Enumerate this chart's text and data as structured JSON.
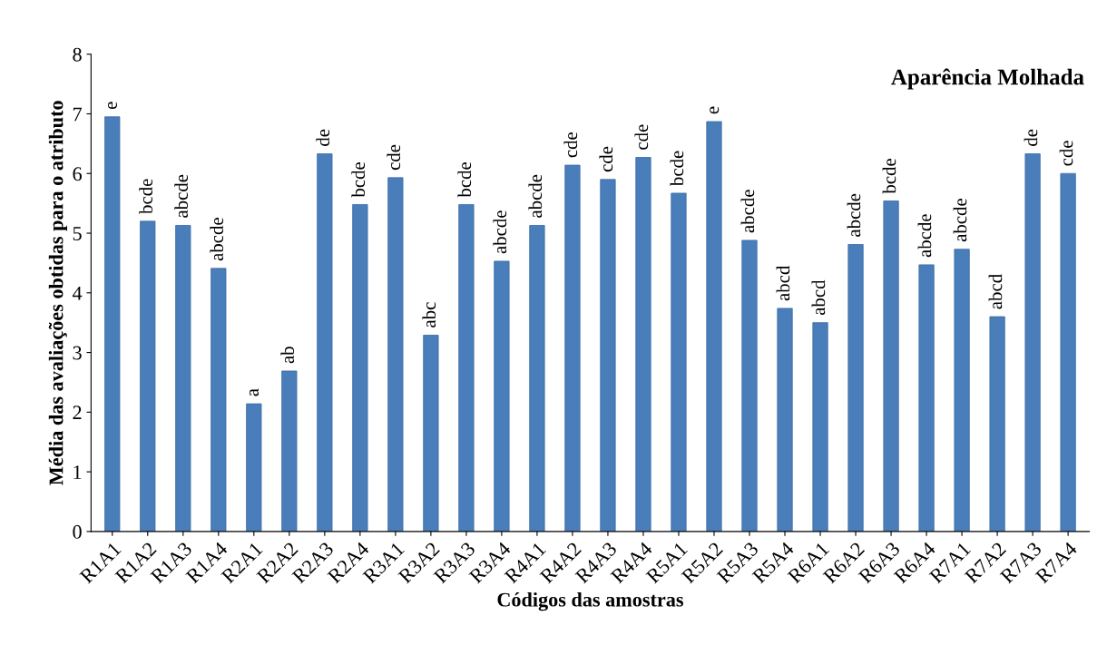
{
  "chart_data": {
    "type": "bar",
    "title": "Aparência Molhada",
    "xlabel": "Códigos das amostras",
    "ylabel": "Média das avaliações obtidas para o atributo",
    "categories": [
      "R1A1",
      "R1A2",
      "R1A3",
      "R1A4",
      "R2A1",
      "R2A2",
      "R2A3",
      "R2A4",
      "R3A1",
      "R3A2",
      "R3A3",
      "R3A4",
      "R4A1",
      "R4A2",
      "R4A3",
      "R4A4",
      "R5A1",
      "R5A2",
      "R5A3",
      "R5A4",
      "R6A1",
      "R6A2",
      "R6A3",
      "R6A4",
      "R7A1",
      "R7A2",
      "R7A3",
      "R7A4"
    ],
    "values": [
      6.95,
      5.2,
      5.13,
      4.41,
      2.14,
      2.69,
      6.33,
      5.48,
      5.93,
      3.29,
      5.48,
      4.53,
      5.13,
      6.14,
      5.9,
      6.27,
      5.67,
      6.87,
      4.88,
      3.74,
      3.5,
      4.81,
      5.54,
      4.47,
      4.73,
      3.6,
      6.33,
      6.0
    ],
    "value_labels": [
      "e",
      "bcde",
      "abcde",
      "abcde",
      "a",
      "ab",
      "de",
      "bcde",
      "cde",
      "abc",
      "bcde",
      "abcde",
      "abcde",
      "cde",
      "cde",
      "cde",
      "bcde",
      "e",
      "abcde",
      "abcd",
      "abcd",
      "abcde",
      "bcde",
      "abcde",
      "abcde",
      "abcd",
      "de",
      "cde"
    ],
    "color": "#4a7ebb",
    "ylim": [
      0,
      8
    ],
    "yticks": [
      0,
      1,
      2,
      3,
      4,
      5,
      6,
      7,
      8
    ],
    "grid": false,
    "legend": false
  }
}
